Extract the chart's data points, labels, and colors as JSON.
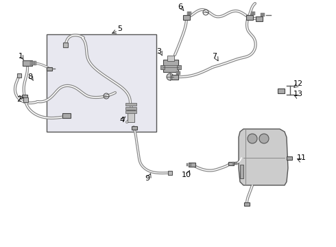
{
  "bg_color": "#ffffff",
  "line_color": "#555555",
  "label_color": "#000000",
  "box_bg": "#e8e8f0",
  "tube_outer": "#888888",
  "tube_inner": "#ffffff",
  "tube_lw_outer": 3.2,
  "tube_lw_inner": 1.4
}
